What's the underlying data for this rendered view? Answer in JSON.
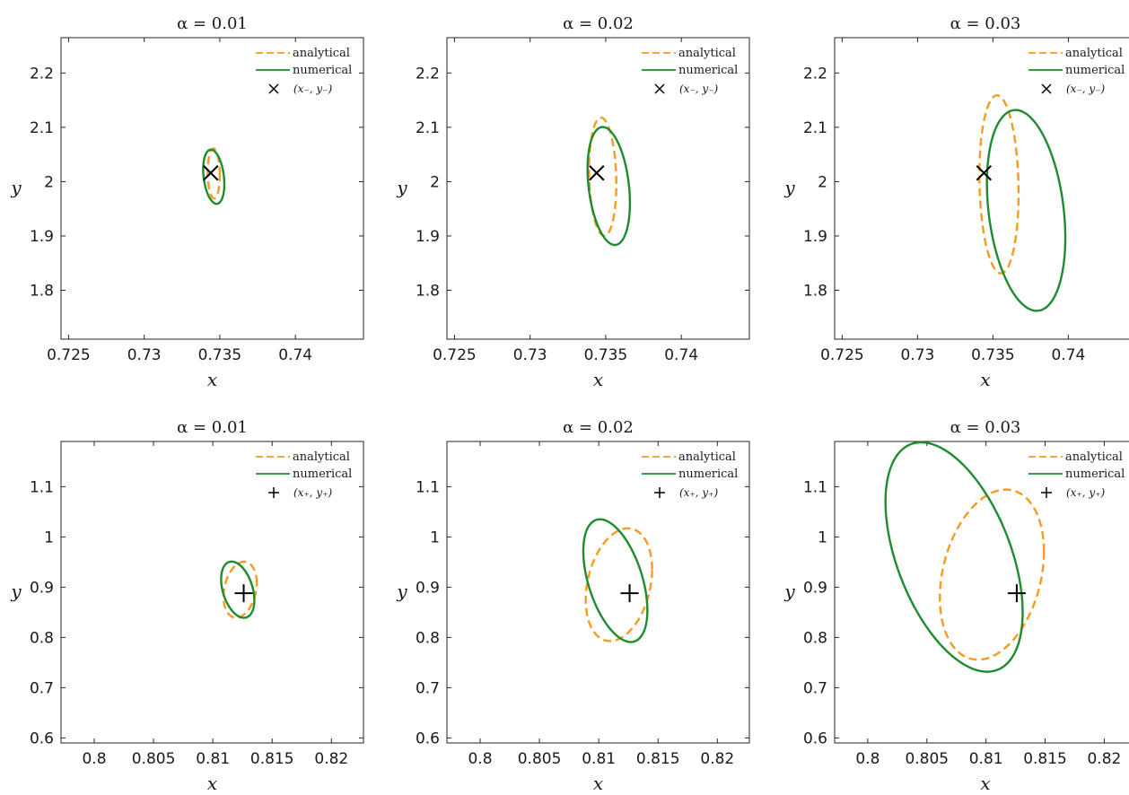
{
  "colors": {
    "analytical": "#F59B1E",
    "numerical": "#1E8C2E",
    "marker": "#000000"
  },
  "chart_data": [
    {
      "type": "line",
      "title": "α = 0.01",
      "xlabel": "x",
      "ylabel": "y",
      "xlim": [
        0.7245,
        0.7445
      ],
      "ylim": [
        1.71,
        2.265
      ],
      "xticks": [
        0.725,
        0.73,
        0.735,
        0.74
      ],
      "xtick_labels": [
        "0.725",
        "0.73",
        "0.735",
        "0.74"
      ],
      "yticks": [
        1.8,
        1.9,
        2,
        2.1,
        2.2
      ],
      "ytick_labels": [
        "1.8",
        "1.9",
        "2",
        "2.1",
        "2.2"
      ],
      "legend": [
        "analytical",
        "numerical",
        "(x₋, y₋)"
      ],
      "legend_position": "top-right",
      "marker": {
        "shape": "x",
        "x": 0.7344,
        "y": 2.016
      },
      "series": [
        {
          "name": "analytical",
          "ellipse": {
            "cx": 0.7346,
            "cy": 2.015,
            "rx": 0.0004,
            "ry": 0.046,
            "tilt": 0.06
          }
        },
        {
          "name": "numerical",
          "ellipse": {
            "cx": 0.7346,
            "cy": 2.009,
            "rx": 0.0007,
            "ry": 0.048,
            "tilt": 0.28
          }
        }
      ]
    },
    {
      "type": "line",
      "title": "α = 0.02",
      "xlabel": "x",
      "ylabel": "y",
      "xlim": [
        0.7245,
        0.7445
      ],
      "ylim": [
        1.71,
        2.265
      ],
      "xticks": [
        0.725,
        0.73,
        0.735,
        0.74
      ],
      "xtick_labels": [
        "0.725",
        "0.73",
        "0.735",
        "0.74"
      ],
      "yticks": [
        1.8,
        1.9,
        2,
        2.1,
        2.2
      ],
      "ytick_labels": [
        "1.8",
        "1.9",
        "2",
        "2.1",
        "2.2"
      ],
      "legend": [
        "analytical",
        "numerical",
        "(x₋, y₋)"
      ],
      "legend_position": "top-right",
      "marker": {
        "shape": "x",
        "x": 0.7344,
        "y": 2.016
      },
      "series": [
        {
          "name": "analytical",
          "ellipse": {
            "cx": 0.7348,
            "cy": 2.009,
            "rx": 0.0009,
            "ry": 0.108,
            "tilt": 0.12
          }
        },
        {
          "name": "numerical",
          "ellipse": {
            "cx": 0.7352,
            "cy": 1.992,
            "rx": 0.0014,
            "ry": 0.104,
            "tilt": 0.3
          }
        }
      ]
    },
    {
      "type": "line",
      "title": "α = 0.03",
      "xlabel": "x",
      "ylabel": "y",
      "xlim": [
        0.7245,
        0.7445
      ],
      "ylim": [
        1.71,
        2.265
      ],
      "xticks": [
        0.725,
        0.73,
        0.735,
        0.74
      ],
      "xtick_labels": [
        "0.725",
        "0.73",
        "0.735",
        "0.74"
      ],
      "yticks": [
        1.8,
        1.9,
        2,
        2.1,
        2.2
      ],
      "ytick_labels": [
        "1.8",
        "1.9",
        "2",
        "2.1",
        "2.2"
      ],
      "legend": [
        "analytical",
        "numerical",
        "(x₋, y₋)"
      ],
      "legend_position": "top-right",
      "marker": {
        "shape": "x",
        "x": 0.7344,
        "y": 2.016
      },
      "series": [
        {
          "name": "analytical",
          "ellipse": {
            "cx": 0.7354,
            "cy": 1.995,
            "rx": 0.0013,
            "ry": 0.163,
            "tilt": 0.1
          }
        },
        {
          "name": "numerical",
          "ellipse": {
            "cx": 0.7372,
            "cy": 1.947,
            "rx": 0.0026,
            "ry": 0.178,
            "tilt": 0.28
          }
        }
      ]
    },
    {
      "type": "line",
      "title": "α = 0.01",
      "xlabel": "x",
      "ylabel": "y",
      "xlim": [
        0.7972,
        0.8227
      ],
      "ylim": [
        0.59,
        1.19
      ],
      "xticks": [
        0.8,
        0.805,
        0.81,
        0.815,
        0.82
      ],
      "xtick_labels": [
        "0.8",
        "0.805",
        "0.81",
        "0.815",
        "0.82"
      ],
      "yticks": [
        0.6,
        0.7,
        0.8,
        0.9,
        1,
        1.1
      ],
      "ytick_labels": [
        "0.6",
        "0.7",
        "0.8",
        "0.9",
        "1",
        "1.1"
      ],
      "legend": [
        "analytical",
        "numerical",
        "(x₊, y₊)"
      ],
      "legend_position": "top-right",
      "marker": {
        "shape": "+",
        "x": 0.8126,
        "y": 0.888
      },
      "series": [
        {
          "name": "analytical",
          "ellipse": {
            "cx": 0.8123,
            "cy": 0.895,
            "rx": 0.0014,
            "ry": 0.054,
            "tilt": -0.25
          }
        },
        {
          "name": "numerical",
          "ellipse": {
            "cx": 0.8121,
            "cy": 0.895,
            "rx": 0.0014,
            "ry": 0.052,
            "tilt": 0.4
          }
        }
      ]
    },
    {
      "type": "line",
      "title": "α = 0.02",
      "xlabel": "x",
      "ylabel": "y",
      "xlim": [
        0.7972,
        0.8227
      ],
      "ylim": [
        0.59,
        1.19
      ],
      "xticks": [
        0.8,
        0.805,
        0.81,
        0.815,
        0.82
      ],
      "xtick_labels": [
        "0.8",
        "0.805",
        "0.81",
        "0.815",
        "0.82"
      ],
      "yticks": [
        0.6,
        0.7,
        0.8,
        0.9,
        1,
        1.1
      ],
      "ytick_labels": [
        "0.6",
        "0.7",
        "0.8",
        "0.9",
        "1",
        "1.1"
      ],
      "legend": [
        "analytical",
        "numerical",
        "(x₊, y₊)"
      ],
      "legend_position": "top-right",
      "marker": {
        "shape": "+",
        "x": 0.8126,
        "y": 0.888
      },
      "series": [
        {
          "name": "analytical",
          "ellipse": {
            "cx": 0.8117,
            "cy": 0.905,
            "rx": 0.0028,
            "ry": 0.108,
            "tilt": -0.28
          }
        },
        {
          "name": "numerical",
          "ellipse": {
            "cx": 0.8114,
            "cy": 0.913,
            "rx": 0.0027,
            "ry": 0.107,
            "tilt": 0.55
          }
        }
      ]
    },
    {
      "type": "line",
      "title": "α = 0.03",
      "xlabel": "x",
      "ylabel": "y",
      "xlim": [
        0.7972,
        0.8227
      ],
      "ylim": [
        0.59,
        1.19
      ],
      "xticks": [
        0.8,
        0.805,
        0.81,
        0.815,
        0.82
      ],
      "xtick_labels": [
        "0.8",
        "0.805",
        "0.81",
        "0.815",
        "0.82"
      ],
      "yticks": [
        0.6,
        0.7,
        0.8,
        0.9,
        1,
        1.1
      ],
      "ytick_labels": [
        "0.6",
        "0.7",
        "0.8",
        "0.9",
        "1",
        "1.1"
      ],
      "legend": [
        "analytical",
        "numerical",
        "(x₊, y₊)"
      ],
      "legend_position": "top-right",
      "marker": {
        "shape": "+",
        "x": 0.8126,
        "y": 0.888
      },
      "series": [
        {
          "name": "analytical",
          "ellipse": {
            "cx": 0.8105,
            "cy": 0.925,
            "rx": 0.0044,
            "ry": 0.163,
            "tilt": -0.28
          }
        },
        {
          "name": "numerical",
          "ellipse": {
            "cx": 0.8073,
            "cy": 0.96,
            "rx": 0.0058,
            "ry": 0.2,
            "tilt": 0.55
          }
        }
      ]
    }
  ]
}
